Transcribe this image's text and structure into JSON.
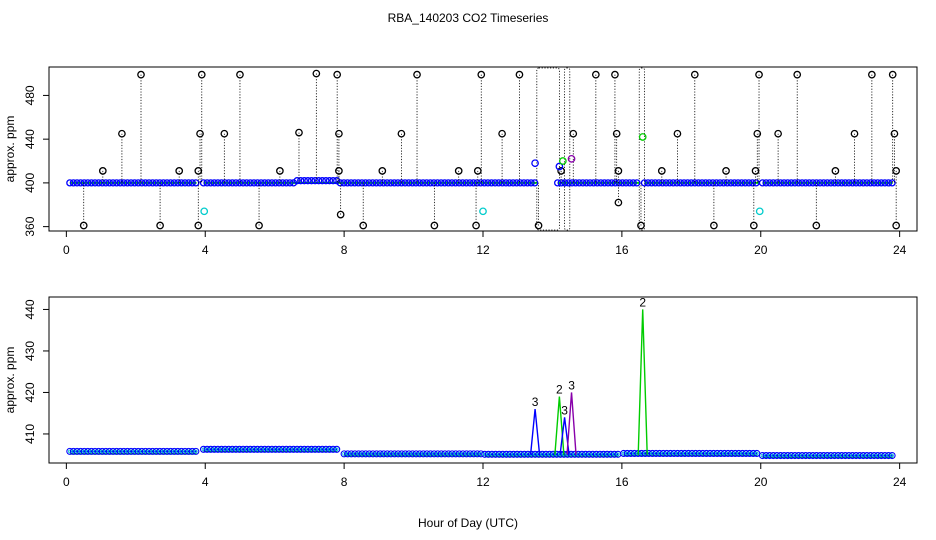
{
  "title": "RBA_140203  CO2 Timeseries",
  "xlabel": "Hour of Day (UTC)",
  "colors": {
    "black": "#000000",
    "blue": "#0000ff",
    "green": "#00cc00",
    "cyan": "#00cccc",
    "purple": "#8800aa"
  },
  "chart_data": [
    {
      "type": "scatter",
      "panel": "top",
      "ylabel": "approx. ppm",
      "xlim": [
        -0.5,
        24.5
      ],
      "ylim": [
        356,
        506
      ],
      "xticks": [
        0,
        4,
        8,
        12,
        16,
        20,
        24
      ],
      "yticks": [
        360,
        400,
        440,
        480
      ],
      "ytick_labels": [
        "360",
        "400",
        "440",
        "480"
      ],
      "baseline": 400,
      "baseline_segments": [
        [
          0.1,
          3.75
        ],
        [
          3.95,
          13.55
        ],
        [
          14.15,
          16.5
        ],
        [
          16.65,
          19.95
        ],
        [
          20.05,
          23.8
        ]
      ],
      "hump": [
        6.6,
        7.8,
        402
      ],
      "high_spikes": [
        [
          2.15,
          499
        ],
        [
          3.9,
          499
        ],
        [
          5.0,
          499
        ],
        [
          7.2,
          500
        ],
        [
          7.8,
          499
        ],
        [
          10.1,
          499
        ],
        [
          11.95,
          499
        ],
        [
          13.05,
          499
        ],
        [
          15.25,
          499
        ],
        [
          15.8,
          499
        ],
        [
          18.1,
          499
        ],
        [
          19.95,
          499
        ],
        [
          21.05,
          499
        ],
        [
          23.2,
          499
        ],
        [
          23.8,
          499
        ]
      ],
      "mid_spikes": [
        [
          1.6,
          445
        ],
        [
          3.85,
          445
        ],
        [
          4.55,
          445
        ],
        [
          6.7,
          446
        ],
        [
          7.85,
          445
        ],
        [
          9.65,
          445
        ],
        [
          12.55,
          445
        ],
        [
          14.6,
          445
        ],
        [
          15.85,
          445
        ],
        [
          17.6,
          445
        ],
        [
          19.9,
          445
        ],
        [
          20.5,
          445
        ],
        [
          22.7,
          445
        ],
        [
          23.85,
          445
        ]
      ],
      "low_spikes": [
        [
          1.05,
          411
        ],
        [
          3.25,
          411
        ],
        [
          3.8,
          411
        ],
        [
          6.15,
          411
        ],
        [
          7.85,
          411
        ],
        [
          9.1,
          411
        ],
        [
          11.3,
          411
        ],
        [
          11.85,
          411
        ],
        [
          14.25,
          411
        ],
        [
          15.9,
          411
        ],
        [
          17.15,
          411
        ],
        [
          19.0,
          411
        ],
        [
          19.85,
          411
        ],
        [
          22.15,
          411
        ],
        [
          23.9,
          411
        ]
      ],
      "dips": [
        [
          0.5,
          361
        ],
        [
          2.7,
          361
        ],
        [
          3.8,
          361
        ],
        [
          5.55,
          361
        ],
        [
          7.9,
          371
        ],
        [
          8.55,
          361
        ],
        [
          10.6,
          361
        ],
        [
          11.8,
          361
        ],
        [
          13.6,
          361
        ],
        [
          15.9,
          382
        ],
        [
          16.55,
          361
        ],
        [
          18.65,
          361
        ],
        [
          19.8,
          361
        ],
        [
          21.6,
          361
        ],
        [
          23.9,
          361
        ]
      ],
      "cyan_points": [
        [
          3.97,
          374
        ],
        [
          12.0,
          374
        ],
        [
          19.97,
          374
        ]
      ],
      "blue_points": [
        [
          13.5,
          418
        ],
        [
          14.2,
          415
        ]
      ],
      "green_points": [
        [
          14.3,
          420
        ],
        [
          16.6,
          442
        ]
      ],
      "purple_points": [
        [
          14.55,
          422
        ]
      ],
      "outlier_boxes": [
        [
          13.55,
          14.2
        ],
        [
          14.35,
          14.5
        ],
        [
          16.5,
          16.65
        ]
      ]
    },
    {
      "type": "line",
      "panel": "bottom",
      "ylabel": "approx. ppm",
      "xlim": [
        -0.5,
        24.5
      ],
      "ylim": [
        403,
        443
      ],
      "xticks": [
        0,
        4,
        8,
        12,
        16,
        20,
        24
      ],
      "yticks": [
        410,
        420,
        430,
        440
      ],
      "ytick_labels": [
        "410",
        "420",
        "430",
        "440"
      ],
      "series": [
        {
          "color": "#00cc00",
          "segments": [
            [
              0.1,
              3.75,
              405.2
            ],
            [
              3.95,
              7.8,
              405.8
            ],
            [
              8.0,
              11.95,
              404.8
            ],
            [
              12.05,
              15.9,
              404.7
            ],
            [
              16.05,
              19.9,
              404.8
            ],
            [
              20.05,
              23.8,
              404.3
            ]
          ]
        },
        {
          "color": "#0000ff",
          "segments": [
            [
              0.1,
              3.75,
              405.8
            ],
            [
              3.95,
              7.8,
              406.3
            ],
            [
              8.0,
              11.95,
              405.2
            ],
            [
              12.05,
              15.9,
              405.1
            ],
            [
              16.05,
              19.9,
              405.3
            ],
            [
              20.05,
              23.8,
              404.8
            ]
          ]
        }
      ],
      "peaks": [
        {
          "x": 13.5,
          "y": 416,
          "label": "3",
          "color": "#0000ff"
        },
        {
          "x": 14.2,
          "y": 419,
          "label": "2",
          "color": "#00cc00"
        },
        {
          "x": 14.35,
          "y": 414,
          "label": "3",
          "color": "#0000ff"
        },
        {
          "x": 14.55,
          "y": 420,
          "label": "3",
          "color": "#8800aa"
        },
        {
          "x": 16.6,
          "y": 440,
          "label": "2",
          "color": "#00cc00"
        }
      ],
      "marker_label": "3"
    }
  ]
}
